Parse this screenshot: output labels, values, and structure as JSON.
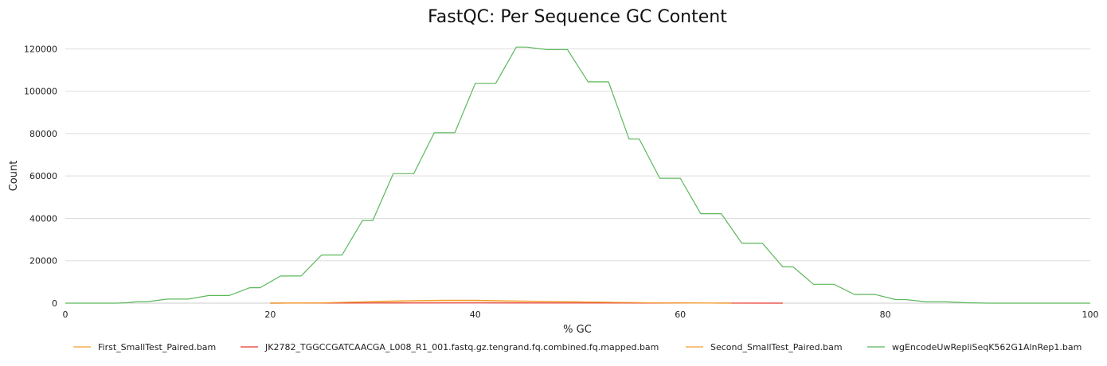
{
  "chart_data": {
    "type": "line",
    "title": "FastQC: Per Sequence GC Content",
    "xlabel": "% GC",
    "ylabel": "Count",
    "xlim": [
      0,
      100
    ],
    "ylim": [
      0,
      125000
    ],
    "xticks": [
      0,
      20,
      40,
      60,
      80,
      100
    ],
    "yticks": [
      0,
      20000,
      40000,
      60000,
      80000,
      100000,
      120000
    ],
    "grid": "horizontal",
    "legend_position": "bottom",
    "series": [
      {
        "name": "First_SmallTest_Paired.bam",
        "color": "#f0a030",
        "points": [
          [
            20,
            0
          ],
          [
            25,
            100
          ],
          [
            28,
            400
          ],
          [
            31,
            700
          ],
          [
            34,
            1000
          ],
          [
            37,
            1150
          ],
          [
            40,
            1150
          ],
          [
            43,
            950
          ],
          [
            46,
            800
          ],
          [
            49,
            650
          ],
          [
            52,
            450
          ],
          [
            55,
            250
          ],
          [
            58,
            100
          ],
          [
            61,
            30
          ],
          [
            65,
            0
          ]
        ]
      },
      {
        "name": "JK2782_TGGCCGATCAACGA_L008_R1_001.fastq.gz.tengrand.fq.combined.fq.mapped.bam",
        "color": "#e8352a",
        "points": [
          [
            20,
            0
          ],
          [
            30,
            60
          ],
          [
            40,
            120
          ],
          [
            50,
            80
          ],
          [
            60,
            30
          ],
          [
            70,
            0
          ]
        ]
      },
      {
        "name": "Second_SmallTest_Paired.bam",
        "color": "#f0a030",
        "points": [
          [
            20,
            0
          ],
          [
            25,
            150
          ],
          [
            28,
            500
          ],
          [
            31,
            900
          ],
          [
            34,
            1200
          ],
          [
            37,
            1400
          ],
          [
            40,
            1350
          ],
          [
            43,
            1100
          ],
          [
            46,
            900
          ],
          [
            49,
            700
          ],
          [
            52,
            500
          ],
          [
            55,
            300
          ],
          [
            58,
            120
          ],
          [
            61,
            40
          ],
          [
            65,
            0
          ]
        ]
      },
      {
        "name": "wgEncodeUwRepliSeqK562G1AlnRep1.bam",
        "color": "#5cb85c",
        "points": [
          [
            0,
            0
          ],
          [
            5,
            0
          ],
          [
            6,
            200
          ],
          [
            7,
            700
          ],
          [
            8,
            700
          ],
          [
            10,
            1900
          ],
          [
            12,
            1900
          ],
          [
            14,
            3600
          ],
          [
            16,
            3600
          ],
          [
            18,
            7300
          ],
          [
            19,
            7300
          ],
          [
            21,
            12800
          ],
          [
            23,
            12800
          ],
          [
            25,
            22700
          ],
          [
            27,
            22700
          ],
          [
            29,
            39000
          ],
          [
            30,
            39000
          ],
          [
            32,
            61100
          ],
          [
            34,
            61100
          ],
          [
            36,
            80400
          ],
          [
            38,
            80400
          ],
          [
            40,
            103700
          ],
          [
            42,
            103700
          ],
          [
            44,
            120800
          ],
          [
            45,
            120800
          ],
          [
            47,
            119600
          ],
          [
            49,
            119600
          ],
          [
            51,
            104400
          ],
          [
            53,
            104400
          ],
          [
            55,
            77400
          ],
          [
            56,
            77400
          ],
          [
            58,
            58900
          ],
          [
            60,
            58900
          ],
          [
            62,
            42200
          ],
          [
            64,
            42200
          ],
          [
            66,
            28300
          ],
          [
            68,
            28300
          ],
          [
            70,
            17100
          ],
          [
            71,
            17100
          ],
          [
            73,
            8900
          ],
          [
            75,
            8900
          ],
          [
            77,
            4100
          ],
          [
            79,
            4100
          ],
          [
            81,
            1700
          ],
          [
            82,
            1700
          ],
          [
            84,
            600
          ],
          [
            86,
            600
          ],
          [
            88,
            200
          ],
          [
            90,
            0
          ],
          [
            100,
            0
          ]
        ]
      }
    ]
  }
}
